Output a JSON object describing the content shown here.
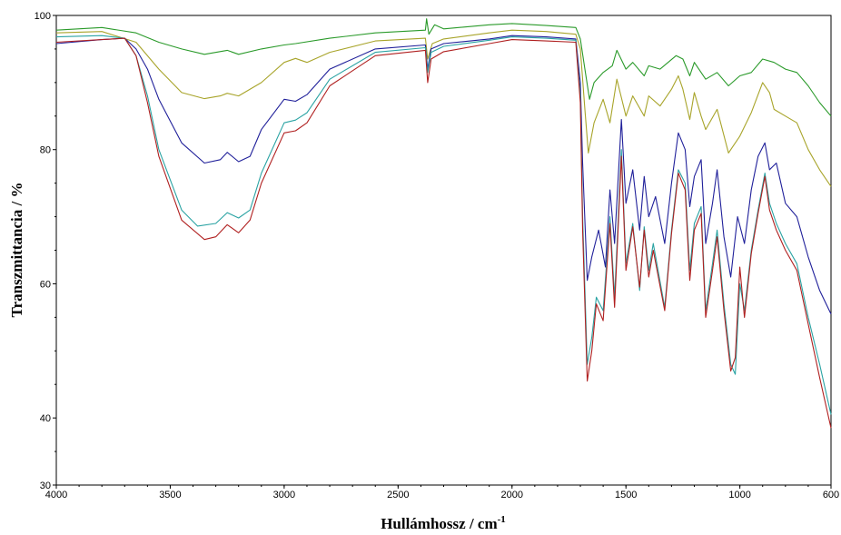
{
  "chart_data": {
    "type": "line",
    "title": "",
    "xlabel": "Hullámhossz / cm",
    "xlabel_sup": "-1",
    "ylabel": "Transzmittancia / %",
    "xlim": [
      4000,
      600
    ],
    "ylim": [
      30,
      100
    ],
    "x_reversed": true,
    "grid": false,
    "legend": "none",
    "x_ticks": [
      4000,
      3500,
      3000,
      2500,
      2000,
      1500,
      1000,
      600
    ],
    "y_ticks": [
      30,
      40,
      60,
      80,
      100
    ],
    "series": [
      {
        "color": "#2a9a2a",
        "points": [
          [
            4000,
            97.8
          ],
          [
            3800,
            98.2
          ],
          [
            3650,
            97.4
          ],
          [
            3550,
            96.0
          ],
          [
            3450,
            95.0
          ],
          [
            3350,
            94.2
          ],
          [
            3250,
            94.8
          ],
          [
            3200,
            94.2
          ],
          [
            3100,
            95.0
          ],
          [
            3000,
            95.6
          ],
          [
            2950,
            95.8
          ],
          [
            2800,
            96.6
          ],
          [
            2600,
            97.4
          ],
          [
            2380,
            97.8
          ],
          [
            2375,
            99.5
          ],
          [
            2365,
            97.2
          ],
          [
            2340,
            98.6
          ],
          [
            2300,
            98.0
          ],
          [
            2100,
            98.6
          ],
          [
            2000,
            98.8
          ],
          [
            1850,
            98.5
          ],
          [
            1720,
            98.2
          ],
          [
            1700,
            96.5
          ],
          [
            1680,
            92.0
          ],
          [
            1660,
            87.5
          ],
          [
            1640,
            90.0
          ],
          [
            1600,
            91.5
          ],
          [
            1560,
            92.5
          ],
          [
            1540,
            94.8
          ],
          [
            1500,
            92.0
          ],
          [
            1470,
            93.0
          ],
          [
            1420,
            91.0
          ],
          [
            1400,
            92.5
          ],
          [
            1350,
            92.0
          ],
          [
            1280,
            94.0
          ],
          [
            1250,
            93.5
          ],
          [
            1220,
            91.0
          ],
          [
            1200,
            93.0
          ],
          [
            1170,
            91.5
          ],
          [
            1150,
            90.5
          ],
          [
            1100,
            91.5
          ],
          [
            1050,
            89.5
          ],
          [
            1000,
            91.0
          ],
          [
            950,
            91.5
          ],
          [
            900,
            93.5
          ],
          [
            850,
            93.0
          ],
          [
            800,
            92.0
          ],
          [
            750,
            91.5
          ],
          [
            700,
            89.5
          ],
          [
            650,
            87.0
          ],
          [
            600,
            85.0
          ]
        ]
      },
      {
        "color": "#a8a42a",
        "points": [
          [
            4000,
            97.4
          ],
          [
            3800,
            97.6
          ],
          [
            3650,
            96.0
          ],
          [
            3550,
            92.0
          ],
          [
            3450,
            88.5
          ],
          [
            3350,
            87.6
          ],
          [
            3280,
            88.0
          ],
          [
            3250,
            88.4
          ],
          [
            3200,
            88.0
          ],
          [
            3100,
            90.0
          ],
          [
            3000,
            93.0
          ],
          [
            2950,
            93.6
          ],
          [
            2900,
            93.0
          ],
          [
            2800,
            94.5
          ],
          [
            2600,
            96.2
          ],
          [
            2380,
            96.6
          ],
          [
            2370,
            93.5
          ],
          [
            2350,
            95.8
          ],
          [
            2300,
            96.5
          ],
          [
            2100,
            97.4
          ],
          [
            2000,
            97.8
          ],
          [
            1850,
            97.6
          ],
          [
            1720,
            97.2
          ],
          [
            1700,
            95.0
          ],
          [
            1680,
            86.0
          ],
          [
            1665,
            79.5
          ],
          [
            1640,
            84.0
          ],
          [
            1600,
            87.5
          ],
          [
            1570,
            84.0
          ],
          [
            1540,
            90.5
          ],
          [
            1500,
            85.0
          ],
          [
            1470,
            88.0
          ],
          [
            1420,
            85.0
          ],
          [
            1400,
            88.0
          ],
          [
            1350,
            86.5
          ],
          [
            1300,
            89.0
          ],
          [
            1270,
            91.0
          ],
          [
            1250,
            89.0
          ],
          [
            1220,
            84.5
          ],
          [
            1200,
            88.5
          ],
          [
            1170,
            85.0
          ],
          [
            1150,
            83.0
          ],
          [
            1100,
            86.0
          ],
          [
            1050,
            79.5
          ],
          [
            1000,
            82.0
          ],
          [
            950,
            85.5
          ],
          [
            900,
            90.0
          ],
          [
            870,
            88.5
          ],
          [
            850,
            86.0
          ],
          [
            800,
            85.0
          ],
          [
            750,
            84.0
          ],
          [
            700,
            80.0
          ],
          [
            650,
            77.0
          ],
          [
            600,
            74.5
          ]
        ]
      },
      {
        "color": "#20209a",
        "points": [
          [
            4000,
            95.8
          ],
          [
            3800,
            96.4
          ],
          [
            3700,
            96.6
          ],
          [
            3650,
            95.0
          ],
          [
            3600,
            92.0
          ],
          [
            3550,
            87.5
          ],
          [
            3450,
            81.0
          ],
          [
            3350,
            78.0
          ],
          [
            3280,
            78.5
          ],
          [
            3250,
            79.6
          ],
          [
            3200,
            78.2
          ],
          [
            3150,
            79.0
          ],
          [
            3100,
            83.0
          ],
          [
            3000,
            87.5
          ],
          [
            2950,
            87.2
          ],
          [
            2900,
            88.2
          ],
          [
            2800,
            92.0
          ],
          [
            2600,
            95.0
          ],
          [
            2380,
            95.6
          ],
          [
            2370,
            92.0
          ],
          [
            2355,
            95.0
          ],
          [
            2300,
            95.8
          ],
          [
            2100,
            96.5
          ],
          [
            2000,
            97.0
          ],
          [
            1850,
            96.8
          ],
          [
            1720,
            96.5
          ],
          [
            1700,
            90.0
          ],
          [
            1690,
            78.0
          ],
          [
            1670,
            60.5
          ],
          [
            1650,
            64.0
          ],
          [
            1620,
            68.0
          ],
          [
            1590,
            62.5
          ],
          [
            1570,
            74.0
          ],
          [
            1550,
            66.0
          ],
          [
            1520,
            84.5
          ],
          [
            1500,
            72.0
          ],
          [
            1470,
            77.0
          ],
          [
            1440,
            68.0
          ],
          [
            1420,
            76.0
          ],
          [
            1400,
            70.0
          ],
          [
            1370,
            73.0
          ],
          [
            1330,
            66.0
          ],
          [
            1300,
            75.0
          ],
          [
            1270,
            82.5
          ],
          [
            1240,
            80.0
          ],
          [
            1220,
            71.5
          ],
          [
            1200,
            76.0
          ],
          [
            1170,
            78.5
          ],
          [
            1150,
            66.0
          ],
          [
            1120,
            72.0
          ],
          [
            1100,
            77.0
          ],
          [
            1070,
            67.0
          ],
          [
            1040,
            61.0
          ],
          [
            1010,
            70.0
          ],
          [
            980,
            66.0
          ],
          [
            950,
            74.0
          ],
          [
            920,
            79.0
          ],
          [
            890,
            81.0
          ],
          [
            870,
            77.0
          ],
          [
            840,
            78.0
          ],
          [
            800,
            72.0
          ],
          [
            750,
            70.0
          ],
          [
            700,
            64.0
          ],
          [
            650,
            59.0
          ],
          [
            600,
            55.5
          ]
        ]
      },
      {
        "color": "#2aa3a3",
        "points": [
          [
            4000,
            96.8
          ],
          [
            3800,
            97.0
          ],
          [
            3700,
            96.6
          ],
          [
            3650,
            94.0
          ],
          [
            3600,
            88.0
          ],
          [
            3550,
            80.0
          ],
          [
            3450,
            71.0
          ],
          [
            3380,
            68.6
          ],
          [
            3300,
            69.0
          ],
          [
            3250,
            70.6
          ],
          [
            3200,
            69.8
          ],
          [
            3150,
            71.0
          ],
          [
            3100,
            76.5
          ],
          [
            3000,
            84.0
          ],
          [
            2950,
            84.4
          ],
          [
            2900,
            85.5
          ],
          [
            2800,
            90.5
          ],
          [
            2600,
            94.5
          ],
          [
            2380,
            95.2
          ],
          [
            2370,
            91.5
          ],
          [
            2355,
            94.5
          ],
          [
            2300,
            95.4
          ],
          [
            2100,
            96.3
          ],
          [
            2000,
            96.8
          ],
          [
            1850,
            96.6
          ],
          [
            1720,
            96.3
          ],
          [
            1700,
            88.0
          ],
          [
            1690,
            70.0
          ],
          [
            1670,
            48.0
          ],
          [
            1650,
            52.0
          ],
          [
            1630,
            58.0
          ],
          [
            1600,
            56.0
          ],
          [
            1570,
            70.0
          ],
          [
            1550,
            58.0
          ],
          [
            1520,
            80.0
          ],
          [
            1500,
            63.0
          ],
          [
            1470,
            69.0
          ],
          [
            1440,
            59.0
          ],
          [
            1420,
            68.5
          ],
          [
            1400,
            62.0
          ],
          [
            1380,
            66.0
          ],
          [
            1330,
            56.5
          ],
          [
            1300,
            68.0
          ],
          [
            1270,
            77.0
          ],
          [
            1240,
            75.0
          ],
          [
            1220,
            62.0
          ],
          [
            1200,
            69.0
          ],
          [
            1170,
            71.5
          ],
          [
            1150,
            56.0
          ],
          [
            1120,
            63.0
          ],
          [
            1100,
            68.0
          ],
          [
            1070,
            57.0
          ],
          [
            1040,
            48.0
          ],
          [
            1020,
            46.5
          ],
          [
            1000,
            60.0
          ],
          [
            980,
            56.0
          ],
          [
            950,
            65.0
          ],
          [
            920,
            71.0
          ],
          [
            890,
            76.5
          ],
          [
            870,
            72.0
          ],
          [
            840,
            69.0
          ],
          [
            800,
            66.0
          ],
          [
            750,
            63.0
          ],
          [
            700,
            55.0
          ],
          [
            650,
            48.0
          ],
          [
            600,
            40.5
          ]
        ]
      },
      {
        "color": "#b02020",
        "points": [
          [
            4000,
            96.0
          ],
          [
            3800,
            96.4
          ],
          [
            3700,
            96.6
          ],
          [
            3650,
            94.0
          ],
          [
            3600,
            87.0
          ],
          [
            3550,
            79.0
          ],
          [
            3450,
            69.5
          ],
          [
            3350,
            66.6
          ],
          [
            3300,
            67.0
          ],
          [
            3250,
            68.8
          ],
          [
            3200,
            67.6
          ],
          [
            3150,
            69.5
          ],
          [
            3100,
            75.0
          ],
          [
            3000,
            82.5
          ],
          [
            2950,
            82.8
          ],
          [
            2900,
            84.0
          ],
          [
            2800,
            89.5
          ],
          [
            2600,
            94.0
          ],
          [
            2380,
            94.8
          ],
          [
            2370,
            90.0
          ],
          [
            2355,
            93.5
          ],
          [
            2300,
            94.6
          ],
          [
            2100,
            95.8
          ],
          [
            2000,
            96.4
          ],
          [
            1850,
            96.2
          ],
          [
            1720,
            96.0
          ],
          [
            1700,
            87.0
          ],
          [
            1690,
            68.0
          ],
          [
            1670,
            45.5
          ],
          [
            1650,
            50.0
          ],
          [
            1630,
            57.0
          ],
          [
            1600,
            54.5
          ],
          [
            1570,
            69.0
          ],
          [
            1550,
            56.5
          ],
          [
            1520,
            79.0
          ],
          [
            1500,
            62.0
          ],
          [
            1470,
            68.5
          ],
          [
            1440,
            59.5
          ],
          [
            1420,
            68.0
          ],
          [
            1400,
            61.0
          ],
          [
            1380,
            65.0
          ],
          [
            1330,
            56.0
          ],
          [
            1300,
            67.5
          ],
          [
            1270,
            76.5
          ],
          [
            1240,
            74.0
          ],
          [
            1220,
            60.5
          ],
          [
            1200,
            68.0
          ],
          [
            1170,
            70.5
          ],
          [
            1150,
            55.0
          ],
          [
            1120,
            62.0
          ],
          [
            1100,
            67.0
          ],
          [
            1070,
            56.0
          ],
          [
            1040,
            47.0
          ],
          [
            1020,
            49.0
          ],
          [
            1000,
            62.5
          ],
          [
            980,
            55.0
          ],
          [
            950,
            64.5
          ],
          [
            920,
            70.5
          ],
          [
            890,
            76.0
          ],
          [
            870,
            71.0
          ],
          [
            840,
            68.0
          ],
          [
            800,
            65.0
          ],
          [
            750,
            62.0
          ],
          [
            700,
            54.0
          ],
          [
            650,
            46.0
          ],
          [
            600,
            38.5
          ]
        ]
      }
    ]
  }
}
